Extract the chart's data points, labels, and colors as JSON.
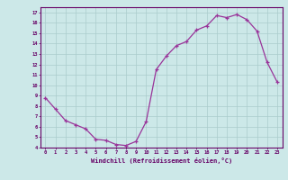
{
  "x": [
    0,
    1,
    2,
    3,
    4,
    5,
    6,
    7,
    8,
    9,
    10,
    11,
    12,
    13,
    14,
    15,
    16,
    17,
    18,
    19,
    20,
    21,
    22,
    23
  ],
  "y": [
    8.8,
    7.7,
    6.6,
    6.2,
    5.8,
    4.8,
    4.7,
    4.3,
    4.2,
    4.6,
    6.5,
    11.5,
    12.8,
    13.8,
    14.2,
    15.3,
    15.7,
    16.7,
    16.5,
    16.8,
    16.3,
    15.2,
    12.2,
    10.3
  ],
  "xlim": [
    -0.5,
    23.5
  ],
  "ylim": [
    4,
    17.5
  ],
  "yticks": [
    4,
    5,
    6,
    7,
    8,
    9,
    10,
    11,
    12,
    13,
    14,
    15,
    16,
    17
  ],
  "xticks": [
    0,
    1,
    2,
    3,
    4,
    5,
    6,
    7,
    8,
    9,
    10,
    11,
    12,
    13,
    14,
    15,
    16,
    17,
    18,
    19,
    20,
    21,
    22,
    23
  ],
  "xlabel": "Windchill (Refroidissement éolien,°C)",
  "line_color": "#993399",
  "marker_color": "#993399",
  "bg_color": "#cce8e8",
  "grid_color": "#aacccc",
  "tick_label_color": "#660066",
  "xlabel_color": "#660066"
}
